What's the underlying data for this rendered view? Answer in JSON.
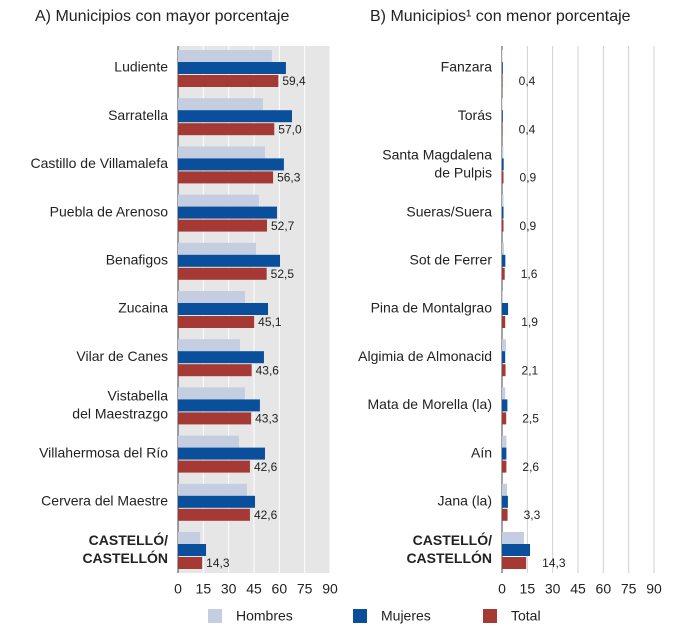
{
  "chart_data": [
    {
      "type": "bar",
      "orientation": "horizontal",
      "title": "A) Municipios con mayor porcentaje",
      "categories": [
        "Ludiente",
        "Sarratella",
        "Castillo de Villamalefa",
        "Puebla de Arenoso",
        "Benafigos",
        "Zucaina",
        "Vilar de Canes",
        "Vistabella\ndel Maestrazgo",
        "Villahermosa del Río",
        "Cervera del Maestre",
        "CASTELLÓ/\nCASTELLÓN"
      ],
      "series": [
        {
          "name": "Hombres",
          "color": "#c5cde0",
          "values": [
            55.6,
            50.3,
            51.5,
            47.9,
            46.2,
            39.6,
            36.7,
            39.6,
            36.1,
            40.8,
            13.0
          ]
        },
        {
          "name": "Mujeres",
          "color": "#0a4f9b",
          "values": [
            63.9,
            67.5,
            62.7,
            58.6,
            60.4,
            53.3,
            50.9,
            48.5,
            51.5,
            45.6,
            16.6
          ]
        },
        {
          "name": "Total",
          "color": "#a53a35",
          "values": [
            59.4,
            57.0,
            56.3,
            52.7,
            52.5,
            45.1,
            43.6,
            43.3,
            42.6,
            42.6,
            14.3
          ],
          "value_labels": [
            "59,4",
            "57,0",
            "56,3",
            "52,7",
            "52,5",
            "45,1",
            "43,6",
            "43,3",
            "42,6",
            "42,6",
            "14,3"
          ]
        }
      ],
      "xlim": [
        0,
        90
      ],
      "xticks": [
        0,
        15,
        30,
        45,
        60,
        75,
        90
      ],
      "grid": true
    },
    {
      "type": "bar",
      "orientation": "horizontal",
      "title": "B) Municipios¹ con menor porcentaje",
      "categories": [
        "Fanzara",
        "Torás",
        "Santa Magdalena\nde Pulpis",
        "Sueras/Suera",
        "Sot de Ferrer",
        "Pina de Montalgrao",
        "Algimia de Almonacid",
        "Mata de Morella (la)",
        "Aín",
        "Jana (la)",
        "CASTELLÓ/\nCASTELLÓN"
      ],
      "series": [
        {
          "name": "Hombres",
          "color": "#c5cde0",
          "values": [
            0.3,
            0.3,
            0.8,
            0.9,
            1.2,
            0.5,
            2.3,
            1.9,
            2.6,
            3.0,
            13.0
          ]
        },
        {
          "name": "Mujeres",
          "color": "#0a4f9b",
          "values": [
            0.5,
            0.5,
            1.0,
            0.9,
            2.0,
            3.6,
            1.9,
            3.2,
            2.6,
            3.5,
            16.6
          ]
        },
        {
          "name": "Total",
          "color": "#a53a35",
          "values": [
            0.4,
            0.4,
            0.9,
            0.9,
            1.6,
            1.9,
            2.1,
            2.5,
            2.6,
            3.3,
            14.3
          ],
          "value_labels": [
            "0,4",
            "0,4",
            "0,9",
            "0,9",
            "1,6",
            "1,9",
            "2,1",
            "2,5",
            "2,6",
            "3,3",
            "14,3"
          ]
        }
      ],
      "xlim": [
        0,
        90
      ],
      "xticks": [
        0,
        15,
        30,
        45,
        60,
        75,
        90
      ],
      "grid": true
    }
  ]
}
